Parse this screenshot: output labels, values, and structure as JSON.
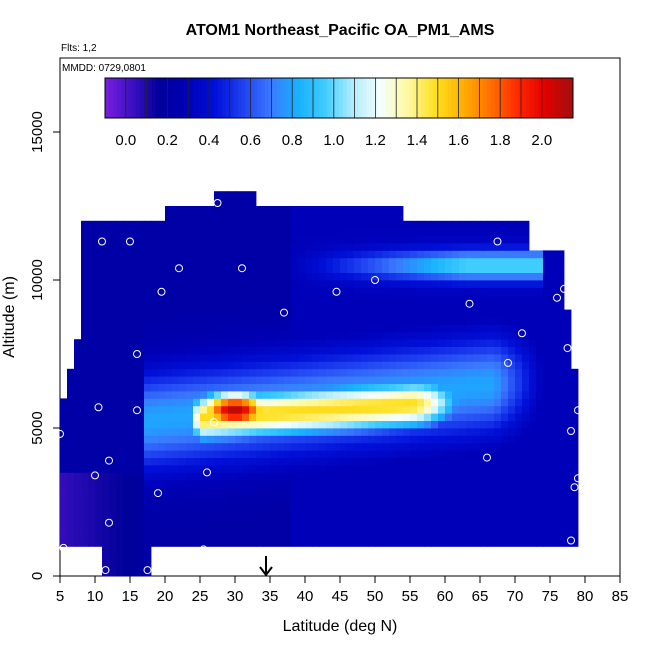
{
  "chart_data": {
    "type": "heatmap",
    "title": "ATOM1 Northeast_Pacific OA_PM1_AMS",
    "annotations": [
      "Flts: 1,2",
      "MMDD: 0729,0801"
    ],
    "xlabel": "Latitude (deg N)",
    "ylabel": "Altitude (m)",
    "xlim": [
      5,
      85
    ],
    "ylim": [
      0,
      17500
    ],
    "xticks": [
      "5",
      "10",
      "15",
      "20",
      "25",
      "30",
      "35",
      "40",
      "45",
      "50",
      "55",
      "60",
      "65",
      "70",
      "75",
      "80",
      "85"
    ],
    "yticks": [
      "0",
      "5000",
      "10000",
      "15000"
    ],
    "ytick_values": [
      0,
      5000,
      10000,
      15000
    ],
    "colorbar": {
      "ticks": [
        "0.0",
        "0.2",
        "0.4",
        "0.6",
        "0.8",
        "1.0",
        "1.2",
        "1.4",
        "1.6",
        "1.8",
        "2.0"
      ],
      "tick_values": [
        0.0,
        0.2,
        0.4,
        0.6,
        0.8,
        1.0,
        1.2,
        1.4,
        1.6,
        1.8,
        2.0
      ],
      "range": [
        -0.1,
        2.15
      ],
      "colors": [
        "#7a1fe0",
        "#3a10c0",
        "#00009a",
        "#0000b8",
        "#0010d8",
        "#1e40f0",
        "#3a78ff",
        "#18b0ff",
        "#40ccff",
        "#b0ecff",
        "#f4ffff",
        "#fff8a0",
        "#ffe020",
        "#ffb000",
        "#ff7000",
        "#ff2800",
        "#e00000",
        "#a01010"
      ]
    },
    "grid": false,
    "arrow_marker_x": 35,
    "field_extents": [
      [
        0,
        11,
        18
      ],
      [
        1000,
        5,
        79
      ],
      [
        2000,
        5,
        79
      ],
      [
        3000,
        5,
        79
      ],
      [
        4000,
        5,
        79
      ],
      [
        5000,
        5,
        79
      ],
      [
        6000,
        6,
        79
      ],
      [
        7000,
        7,
        78
      ],
      [
        8000,
        8,
        78
      ],
      [
        9000,
        8,
        77
      ],
      [
        10000,
        8,
        77
      ],
      [
        11000,
        8,
        72
      ],
      [
        12000,
        20,
        54
      ],
      [
        12600,
        27,
        33
      ]
    ],
    "features": [
      {
        "kind": "max",
        "value": 2.1,
        "lat": 30,
        "alt": 5600,
        "spread_lat": 6,
        "spread_alt": 700
      },
      {
        "kind": "plume_core",
        "value": 1.5,
        "lat_start": 22,
        "lat_end": 55,
        "alt": 5500,
        "spread_alt": 900
      },
      {
        "kind": "plume_edge",
        "value": 0.8,
        "lat_start": 17,
        "lat_end": 75,
        "alt_center": 5800,
        "spread_alt": 1600
      },
      {
        "kind": "upper_band",
        "value": 1.0,
        "lat_start": 38,
        "lat_end": 74,
        "alt": 10500
      }
    ],
    "sample_points": [
      [
        5,
        4800
      ],
      [
        5.5,
        950
      ],
      [
        10,
        3400
      ],
      [
        10.5,
        5700
      ],
      [
        11,
        11300
      ],
      [
        11.5,
        200
      ],
      [
        12,
        1800
      ],
      [
        12,
        3900
      ],
      [
        15,
        11300
      ],
      [
        16,
        5600
      ],
      [
        16,
        7500
      ],
      [
        17.5,
        200
      ],
      [
        19,
        2800
      ],
      [
        19.5,
        9600
      ],
      [
        22,
        10400
      ],
      [
        25.5,
        900
      ],
      [
        26,
        3500
      ],
      [
        27,
        5200
      ],
      [
        27.5,
        12600
      ],
      [
        31,
        10400
      ],
      [
        37,
        8900
      ],
      [
        44.5,
        9600
      ],
      [
        50,
        10000
      ],
      [
        63.5,
        9200
      ],
      [
        66,
        4000
      ],
      [
        67.5,
        11300
      ],
      [
        69,
        7200
      ],
      [
        71,
        8200
      ],
      [
        76,
        9400
      ],
      [
        77,
        9700
      ],
      [
        77.5,
        7700
      ],
      [
        78,
        4900
      ],
      [
        78,
        1200
      ],
      [
        78.5,
        3000
      ],
      [
        78.5,
        800
      ],
      [
        79,
        3300
      ],
      [
        79,
        5600
      ]
    ]
  }
}
